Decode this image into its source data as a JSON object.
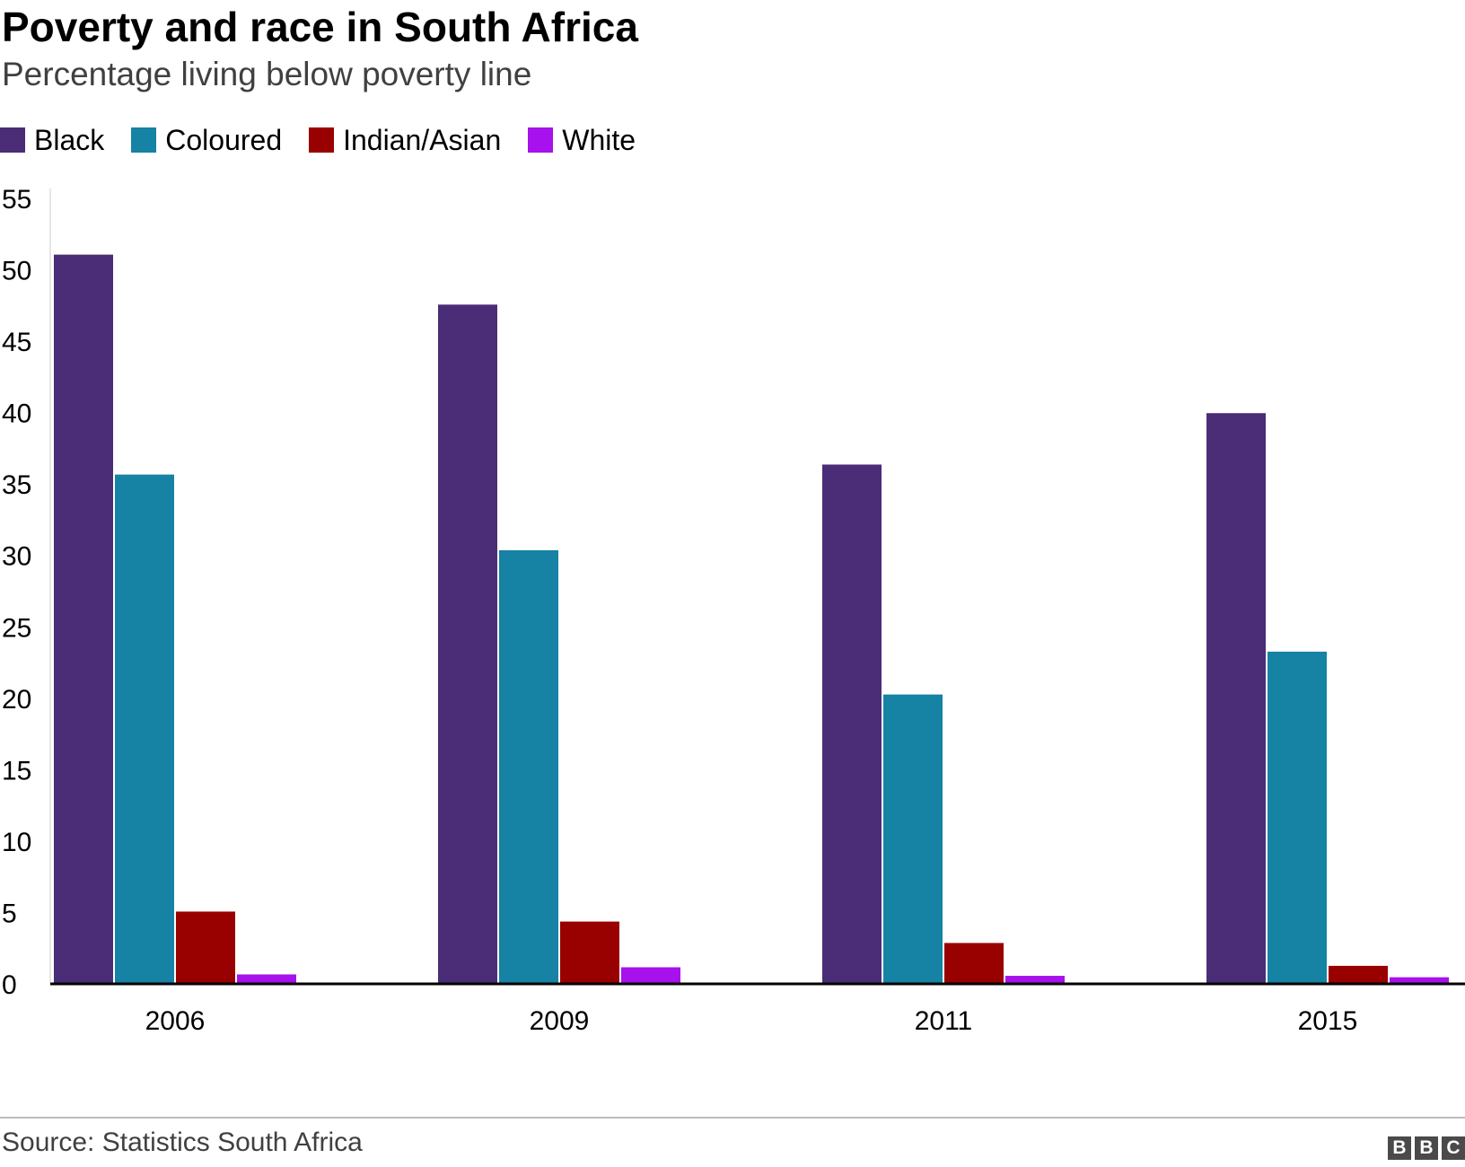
{
  "title": "Poverty and race in South Africa",
  "subtitle": "Percentage living below poverty line",
  "legend": [
    {
      "label": "Black",
      "color": "#4b2c76"
    },
    {
      "label": "Coloured",
      "color": "#1682a4"
    },
    {
      "label": "Indian/Asian",
      "color": "#990000"
    },
    {
      "label": "White",
      "color": "#a711ed"
    }
  ],
  "source": "Source: Statistics South Africa",
  "logo": [
    "B",
    "B",
    "C"
  ],
  "chart_data": {
    "type": "bar",
    "title": "Poverty and race in South Africa",
    "subtitle": "Percentage living below poverty line",
    "xlabel": "",
    "ylabel": "",
    "categories": [
      "2006",
      "2009",
      "2011",
      "2015"
    ],
    "series": [
      {
        "name": "Black",
        "color": "#4b2c76",
        "values": [
          51.0,
          47.5,
          36.3,
          39.9
        ]
      },
      {
        "name": "Coloured",
        "color": "#1682a4",
        "values": [
          35.6,
          30.3,
          20.2,
          23.2
        ]
      },
      {
        "name": "Indian/Asian",
        "color": "#990000",
        "values": [
          5.0,
          4.3,
          2.8,
          1.2
        ]
      },
      {
        "name": "White",
        "color": "#a711ed",
        "values": [
          0.6,
          1.1,
          0.5,
          0.4
        ]
      }
    ],
    "ylim": [
      0,
      55
    ],
    "yticks": [
      0,
      5,
      10,
      15,
      20,
      25,
      30,
      35,
      40,
      45,
      50,
      55
    ],
    "legend_position": "top-left",
    "grid": false
  }
}
